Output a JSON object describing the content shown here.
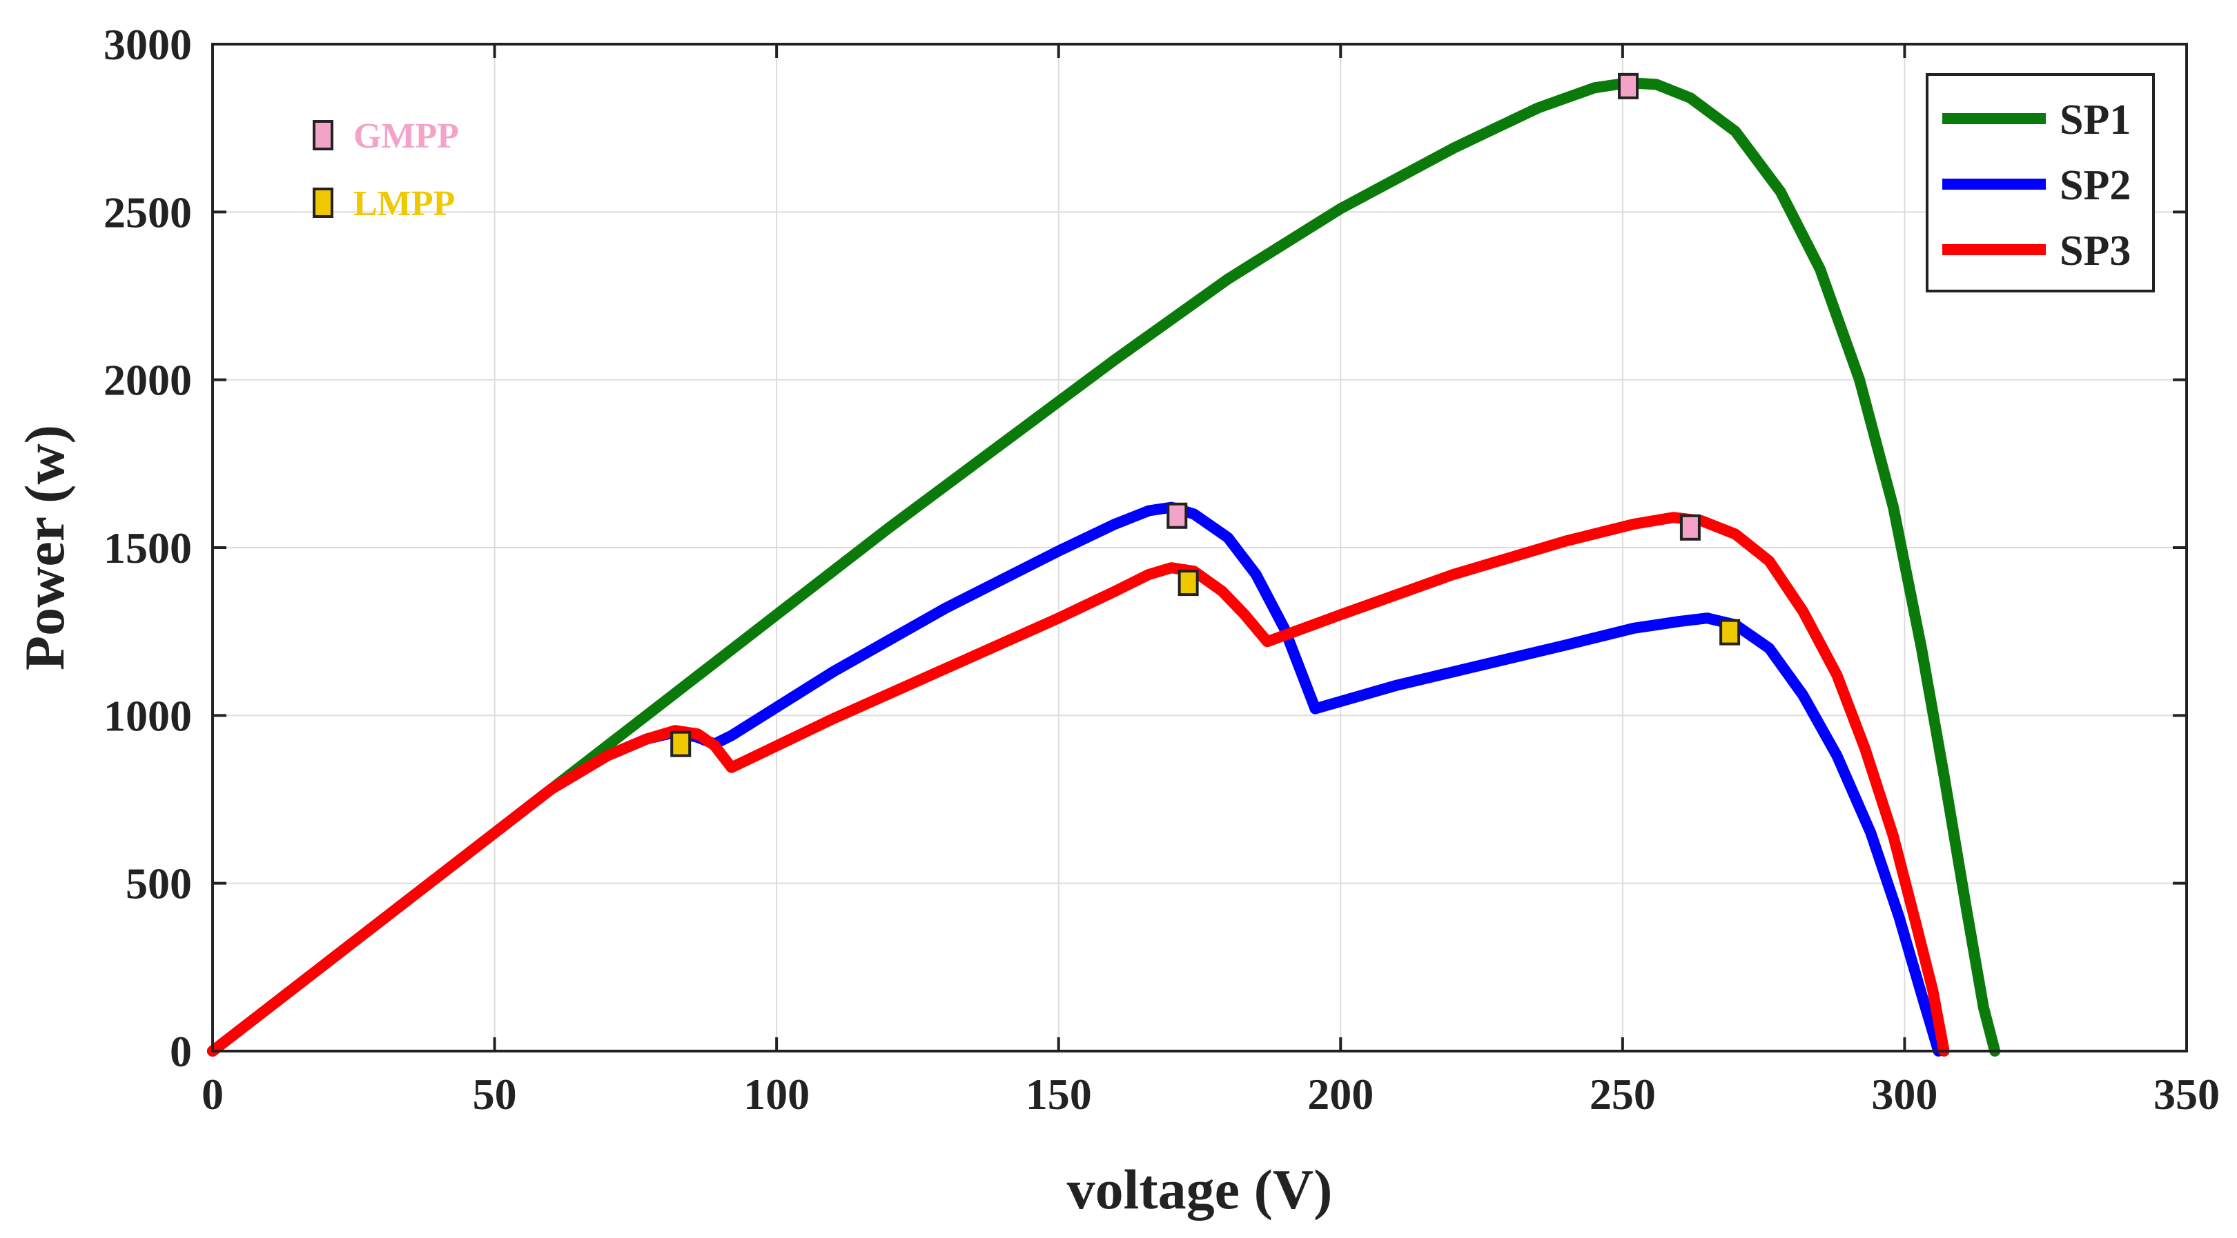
{
  "chart_data": {
    "type": "line",
    "title": "",
    "xlabel": "voltage (V)",
    "ylabel": "Power (w)",
    "xlim": [
      0,
      350
    ],
    "ylim": [
      0,
      3000
    ],
    "xticks": [
      0,
      50,
      100,
      150,
      200,
      250,
      300,
      350
    ],
    "yticks": [
      0,
      500,
      1000,
      1500,
      2000,
      2500,
      3000
    ],
    "grid": true,
    "legend_position": "top-right",
    "series": [
      {
        "name": "SP1",
        "color": "#0a7a0a",
        "points": [
          [
            0,
            0
          ],
          [
            20,
            260
          ],
          [
            40,
            520
          ],
          [
            60,
            780
          ],
          [
            80,
            1040
          ],
          [
            100,
            1300
          ],
          [
            120,
            1560
          ],
          [
            140,
            1810
          ],
          [
            160,
            2060
          ],
          [
            180,
            2300
          ],
          [
            200,
            2510
          ],
          [
            220,
            2690
          ],
          [
            235,
            2810
          ],
          [
            245,
            2870
          ],
          [
            251,
            2885
          ],
          [
            256,
            2880
          ],
          [
            262,
            2840
          ],
          [
            270,
            2740
          ],
          [
            278,
            2560
          ],
          [
            285,
            2330
          ],
          [
            292,
            2000
          ],
          [
            298,
            1620
          ],
          [
            303,
            1200
          ],
          [
            307,
            820
          ],
          [
            311,
            420
          ],
          [
            314,
            130
          ],
          [
            316,
            0
          ]
        ]
      },
      {
        "name": "SP2",
        "color": "#0000ff",
        "points": [
          [
            0,
            0
          ],
          [
            20,
            260
          ],
          [
            40,
            520
          ],
          [
            60,
            780
          ],
          [
            70,
            880
          ],
          [
            77,
            930
          ],
          [
            82,
            950
          ],
          [
            86,
            935
          ],
          [
            89,
            915
          ],
          [
            92,
            940
          ],
          [
            110,
            1130
          ],
          [
            130,
            1320
          ],
          [
            150,
            1490
          ],
          [
            160,
            1570
          ],
          [
            166,
            1610
          ],
          [
            170,
            1620
          ],
          [
            174,
            1600
          ],
          [
            180,
            1530
          ],
          [
            185,
            1420
          ],
          [
            190,
            1260
          ],
          [
            195.5,
            1020
          ],
          [
            210,
            1090
          ],
          [
            225,
            1150
          ],
          [
            240,
            1210
          ],
          [
            252,
            1260
          ],
          [
            260,
            1280
          ],
          [
            265,
            1290
          ],
          [
            270,
            1270
          ],
          [
            276,
            1200
          ],
          [
            282,
            1060
          ],
          [
            288,
            880
          ],
          [
            294,
            650
          ],
          [
            299,
            400
          ],
          [
            303,
            170
          ],
          [
            306,
            0
          ]
        ]
      },
      {
        "name": "SP3",
        "color": "#ff0000",
        "points": [
          [
            0,
            0
          ],
          [
            20,
            260
          ],
          [
            40,
            520
          ],
          [
            60,
            780
          ],
          [
            70,
            880
          ],
          [
            77,
            930
          ],
          [
            82,
            955
          ],
          [
            86,
            945
          ],
          [
            89,
            910
          ],
          [
            92,
            845
          ],
          [
            110,
            990
          ],
          [
            130,
            1140
          ],
          [
            150,
            1290
          ],
          [
            160,
            1370
          ],
          [
            166,
            1420
          ],
          [
            170,
            1440
          ],
          [
            174,
            1430
          ],
          [
            179,
            1370
          ],
          [
            183,
            1300
          ],
          [
            187,
            1220
          ],
          [
            200,
            1300
          ],
          [
            220,
            1420
          ],
          [
            240,
            1520
          ],
          [
            252,
            1570
          ],
          [
            259,
            1590
          ],
          [
            264,
            1580
          ],
          [
            270,
            1540
          ],
          [
            276,
            1460
          ],
          [
            282,
            1310
          ],
          [
            288,
            1120
          ],
          [
            293,
            900
          ],
          [
            298,
            640
          ],
          [
            302,
            380
          ],
          [
            305,
            180
          ],
          [
            307,
            0
          ]
        ]
      }
    ],
    "markers": [
      {
        "type": "GMPP",
        "series": "SP1",
        "x": 251,
        "y": 2875,
        "color": "#f3a3c8"
      },
      {
        "type": "GMPP",
        "series": "SP2",
        "x": 171,
        "y": 1595,
        "color": "#f3a3c8"
      },
      {
        "type": "GMPP",
        "series": "SP3",
        "x": 262,
        "y": 1560,
        "color": "#f3a3c8"
      },
      {
        "type": "LMPP",
        "series": "SP3",
        "x": 83,
        "y": 915,
        "color": "#f0c800"
      },
      {
        "type": "LMPP",
        "series": "SP3",
        "x": 173,
        "y": 1395,
        "color": "#f0c800"
      },
      {
        "type": "LMPP",
        "series": "SP2",
        "x": 269,
        "y": 1248,
        "color": "#f0c800"
      }
    ],
    "annotation_legend": [
      {
        "label": "GMPP",
        "color": "#f3a3c8"
      },
      {
        "label": "LMPP",
        "color": "#f0c800"
      }
    ]
  }
}
